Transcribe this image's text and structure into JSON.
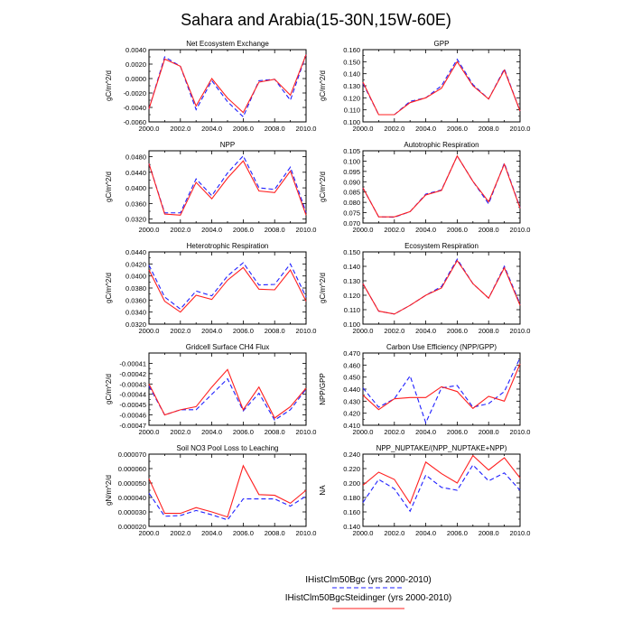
{
  "title": "Sahara and Arabia(15-30N,15W-60E)",
  "colors": {
    "blue": "#1f1fff",
    "red": "#ff1f1f"
  },
  "legend": {
    "entries": [
      {
        "label": "IHistClm50Bgc (yrs 2000-2010)",
        "color": "#1f1fff",
        "style": "dashed"
      },
      {
        "label": "IHistClm50BgcSteidinger (yrs 2000-2010)",
        "color": "#ff1f1f",
        "style": "solid"
      }
    ]
  },
  "chart_data": [
    {
      "type": "line",
      "panel": "left-1",
      "title": "Net Ecosystem Exchange",
      "ylabel": "gC/m^2/d",
      "x": [
        2000,
        2001,
        2002,
        2003,
        2004,
        2005,
        2006,
        2007,
        2008,
        2009,
        2010
      ],
      "xlim": [
        2000,
        2010
      ],
      "xticks": [
        "2000.0",
        "2002.0",
        "2004.0",
        "2006.0",
        "2008.0",
        "2010.0"
      ],
      "ylim": [
        -0.006,
        0.004
      ],
      "yticks": [
        "-0.0060",
        "-0.0040",
        "-0.0020",
        "0.0000",
        "0.0020",
        "0.0040"
      ],
      "series": [
        {
          "name": "IHistClm50Bgc",
          "values": [
            -0.0042,
            0.003,
            0.0017,
            -0.0043,
            -0.0003,
            -0.0032,
            -0.0053,
            -0.0003,
            -0.0001,
            -0.003,
            0.0033
          ]
        },
        {
          "name": "IHistClm50BgcSteidinger",
          "values": [
            -0.0042,
            0.0027,
            0.0017,
            -0.0038,
            0.0,
            -0.0027,
            -0.0047,
            -0.0005,
            -0.0001,
            -0.0023,
            0.0033
          ]
        }
      ]
    },
    {
      "type": "line",
      "panel": "right-1",
      "title": "GPP",
      "ylabel": "gC/m^2/d",
      "x": [
        2000,
        2001,
        2002,
        2003,
        2004,
        2005,
        2006,
        2007,
        2008,
        2009,
        2010
      ],
      "xlim": [
        2000,
        2010
      ],
      "xticks": [
        "2000.0",
        "2002.0",
        "2004.0",
        "2006.0",
        "2008.0",
        "2010.0"
      ],
      "ylim": [
        0.1,
        0.16
      ],
      "yticks": [
        "0.100",
        "0.110",
        "0.120",
        "0.130",
        "0.140",
        "0.150",
        "0.160"
      ],
      "series": [
        {
          "name": "IHistClm50Bgc",
          "values": [
            0.132,
            0.106,
            0.106,
            0.117,
            0.12,
            0.13,
            0.152,
            0.131,
            0.119,
            0.144,
            0.109
          ]
        },
        {
          "name": "IHistClm50BgcSteidinger",
          "values": [
            0.133,
            0.106,
            0.106,
            0.116,
            0.12,
            0.128,
            0.15,
            0.13,
            0.119,
            0.143,
            0.109
          ]
        }
      ]
    },
    {
      "type": "line",
      "panel": "left-2",
      "title": "NPP",
      "ylabel": "gC/m^2/d",
      "x": [
        2000,
        2001,
        2002,
        2003,
        2004,
        2005,
        2006,
        2007,
        2008,
        2009,
        2010
      ],
      "xlim": [
        2000,
        2010
      ],
      "xticks": [
        "2000.0",
        "2002.0",
        "2004.0",
        "2006.0",
        "2008.0",
        "2010.0"
      ],
      "ylim": [
        0.031,
        0.0495
      ],
      "yticks": [
        "0.0320",
        "0.0360",
        "0.0400",
        "0.0440",
        "0.0480"
      ],
      "series": [
        {
          "name": "IHistClm50Bgc",
          "values": [
            0.0462,
            0.0336,
            0.0336,
            0.0423,
            0.038,
            0.0438,
            0.0482,
            0.04,
            0.0396,
            0.0453,
            0.0337
          ]
        },
        {
          "name": "IHistClm50BgcSteidinger",
          "values": [
            0.0462,
            0.0333,
            0.033,
            0.0414,
            0.0372,
            0.0425,
            0.0469,
            0.0392,
            0.0388,
            0.0443,
            0.033
          ]
        }
      ]
    },
    {
      "type": "line",
      "panel": "right-2",
      "title": "Autotrophic Respiration",
      "ylabel": "gC/m^2/d",
      "x": [
        2000,
        2001,
        2002,
        2003,
        2004,
        2005,
        2006,
        2007,
        2008,
        2009,
        2010
      ],
      "xlim": [
        2000,
        2010
      ],
      "xticks": [
        "2000.0",
        "2002.0",
        "2004.0",
        "2006.0",
        "2008.0",
        "2010.0"
      ],
      "ylim": [
        0.07,
        0.105
      ],
      "yticks": [
        "0.070",
        "0.075",
        "0.080",
        "0.085",
        "0.090",
        "0.095",
        "0.100",
        "0.105"
      ],
      "series": [
        {
          "name": "IHistClm50Bgc",
          "values": [
            0.087,
            0.073,
            0.0728,
            0.0755,
            0.084,
            0.086,
            0.1025,
            0.0902,
            0.0793,
            0.099,
            0.0775
          ]
        },
        {
          "name": "IHistClm50BgcSteidinger",
          "values": [
            0.087,
            0.073,
            0.073,
            0.0755,
            0.0836,
            0.0858,
            0.1025,
            0.0902,
            0.0803,
            0.0985,
            0.0772
          ]
        }
      ]
    },
    {
      "type": "line",
      "panel": "left-3",
      "title": "Heterotrophic Respiration",
      "ylabel": "gC/m^2/d",
      "x": [
        2000,
        2001,
        2002,
        2003,
        2004,
        2005,
        2006,
        2007,
        2008,
        2009,
        2010
      ],
      "xlim": [
        2000,
        2010
      ],
      "xticks": [
        "2000.0",
        "2002.0",
        "2004.0",
        "2006.0",
        "2008.0",
        "2010.0"
      ],
      "ylim": [
        0.032,
        0.044
      ],
      "yticks": [
        "0.0320",
        "0.0340",
        "0.0360",
        "0.0380",
        "0.0400",
        "0.0420",
        "0.0440"
      ],
      "series": [
        {
          "name": "IHistClm50Bgc",
          "values": [
            0.0418,
            0.0365,
            0.0345,
            0.0375,
            0.0367,
            0.04,
            0.0422,
            0.0385,
            0.0386,
            0.042,
            0.0365
          ]
        },
        {
          "name": "IHistClm50BgcSteidinger",
          "values": [
            0.041,
            0.0358,
            0.034,
            0.0368,
            0.0361,
            0.0393,
            0.0414,
            0.0378,
            0.0377,
            0.041,
            0.0358
          ]
        }
      ]
    },
    {
      "type": "line",
      "panel": "right-3",
      "title": "Ecosystem Respiration",
      "ylabel": "gC/m^2/d",
      "x": [
        2000,
        2001,
        2002,
        2003,
        2004,
        2005,
        2006,
        2007,
        2008,
        2009,
        2010
      ],
      "xlim": [
        2000,
        2010
      ],
      "xticks": [
        "2000.0",
        "2002.0",
        "2004.0",
        "2006.0",
        "2008.0",
        "2010.0"
      ],
      "ylim": [
        0.1,
        0.15
      ],
      "yticks": [
        "0.100",
        "0.110",
        "0.120",
        "0.130",
        "0.140",
        "0.150"
      ],
      "series": [
        {
          "name": "IHistClm50Bgc",
          "values": [
            0.128,
            0.109,
            0.107,
            0.113,
            0.12,
            0.126,
            0.145,
            0.128,
            0.118,
            0.14,
            0.114
          ]
        },
        {
          "name": "IHistClm50BgcSteidinger",
          "values": [
            0.128,
            0.109,
            0.107,
            0.113,
            0.12,
            0.125,
            0.144,
            0.128,
            0.118,
            0.139,
            0.113
          ]
        }
      ]
    },
    {
      "type": "line",
      "panel": "left-4",
      "title": "Gridcell Surface CH4 Flux",
      "ylabel": "gC/m^2/d",
      "x": [
        2000,
        2001,
        2002,
        2003,
        2004,
        2005,
        2006,
        2007,
        2008,
        2009,
        2010
      ],
      "xlim": [
        2000,
        2010
      ],
      "xticks": [
        "2000.0",
        "2002.0",
        "2004.0",
        "2006.0",
        "2008.0",
        "2010.0"
      ],
      "ylim": [
        -0.00047,
        -0.0004
      ],
      "yticks": [
        "-0.00047",
        "-0.00046",
        "-0.00045",
        "-0.00044",
        "-0.00043",
        "-0.00042",
        "-0.00041"
      ],
      "series": [
        {
          "name": "IHistClm50Bgc",
          "values": [
            -0.000432,
            -0.00046,
            -0.000455,
            -0.000455,
            -0.00044,
            -0.000425,
            -0.000456,
            -0.000439,
            -0.000465,
            -0.000455,
            -0.000435
          ]
        },
        {
          "name": "IHistClm50BgcSteidinger",
          "values": [
            -0.00043,
            -0.00046,
            -0.000455,
            -0.000452,
            -0.000433,
            -0.000416,
            -0.000455,
            -0.000433,
            -0.000463,
            -0.000452,
            -0.000434
          ]
        }
      ]
    },
    {
      "type": "line",
      "panel": "right-4",
      "title": "Carbon Use Efficiency (NPP/GPP)",
      "ylabel": "NPP/GPP",
      "x": [
        2000,
        2001,
        2002,
        2003,
        2004,
        2005,
        2006,
        2007,
        2008,
        2009,
        2010
      ],
      "xlim": [
        2000,
        2010
      ],
      "xticks": [
        "2000.0",
        "2002.0",
        "2004.0",
        "2006.0",
        "2008.0",
        "2010.0"
      ],
      "ylim": [
        0.41,
        0.47
      ],
      "yticks": [
        "0.410",
        "0.420",
        "0.430",
        "0.440",
        "0.450",
        "0.460",
        "0.470"
      ],
      "series": [
        {
          "name": "IHistClm50Bgc",
          "values": [
            0.441,
            0.425,
            0.432,
            0.451,
            0.412,
            0.441,
            0.443,
            0.425,
            0.428,
            0.438,
            0.466
          ]
        },
        {
          "name": "IHistClm50BgcSteidinger",
          "values": [
            0.435,
            0.423,
            0.432,
            0.433,
            0.433,
            0.442,
            0.438,
            0.424,
            0.434,
            0.43,
            0.461
          ]
        }
      ]
    },
    {
      "type": "line",
      "panel": "left-5",
      "title": "Soil NO3 Pool Loss to Leaching",
      "ylabel": "gN/m^2/d",
      "x": [
        2000,
        2001,
        2002,
        2003,
        2004,
        2005,
        2006,
        2007,
        2008,
        2009,
        2010
      ],
      "xlim": [
        2000,
        2010
      ],
      "xticks": [
        "2000.0",
        "2002.0",
        "2004.0",
        "2006.0",
        "2008.0",
        "2010.0"
      ],
      "ylim": [
        2e-05,
        7e-05
      ],
      "yticks": [
        "0.000020",
        "0.000030",
        "0.000040",
        "0.000050",
        "0.000060",
        "0.000070"
      ],
      "series": [
        {
          "name": "IHistClm50Bgc",
          "values": [
            4.3e-05,
            2.7e-05,
            2.75e-05,
            3.1e-05,
            2.8e-05,
            2.45e-05,
            3.9e-05,
            3.9e-05,
            3.9e-05,
            3.4e-05,
            4.1e-05
          ]
        },
        {
          "name": "IHistClm50BgcSteidinger",
          "values": [
            5.3e-05,
            2.9e-05,
            2.9e-05,
            3.3e-05,
            3e-05,
            2.65e-05,
            6.2e-05,
            4.2e-05,
            4.15e-05,
            3.6e-05,
            4.5e-05
          ]
        }
      ]
    },
    {
      "type": "line",
      "panel": "right-5",
      "title": "NPP_NUPTAKE/(NPP_NUPTAKE+NPP)",
      "ylabel": "NA",
      "x": [
        2000,
        2001,
        2002,
        2003,
        2004,
        2005,
        2006,
        2007,
        2008,
        2009,
        2010
      ],
      "xlim": [
        2000,
        2010
      ],
      "xticks": [
        "2000.0",
        "2002.0",
        "2004.0",
        "2006.0",
        "2008.0",
        "2010.0"
      ],
      "ylim": [
        0.14,
        0.24
      ],
      "yticks": [
        "0.140",
        "0.160",
        "0.180",
        "0.200",
        "0.220",
        "0.240"
      ],
      "series": [
        {
          "name": "IHistClm50Bgc",
          "values": [
            0.173,
            0.205,
            0.192,
            0.161,
            0.211,
            0.194,
            0.19,
            0.225,
            0.203,
            0.214,
            0.19
          ]
        },
        {
          "name": "IHistClm50BgcSteidinger",
          "values": [
            0.197,
            0.215,
            0.205,
            0.172,
            0.229,
            0.213,
            0.2,
            0.238,
            0.218,
            0.235,
            0.207
          ]
        }
      ]
    }
  ]
}
